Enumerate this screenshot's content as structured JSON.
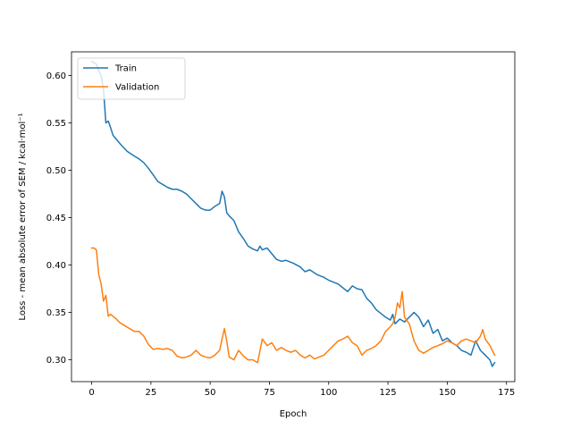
{
  "chart_data": {
    "type": "line",
    "title": "",
    "xlabel": "Epoch",
    "ylabel": "Loss - mean absolute error of SEM / kcal·mol⁻¹",
    "xlim": [
      -8.5,
      178.5
    ],
    "ylim": [
      0.277,
      0.625
    ],
    "xticks": [
      0,
      25,
      50,
      75,
      100,
      125,
      150,
      175
    ],
    "yticks": [
      0.3,
      0.35,
      0.4,
      0.45,
      0.5,
      0.55,
      0.6
    ],
    "xtick_labels": [
      "0",
      "25",
      "50",
      "75",
      "100",
      "125",
      "150",
      "175"
    ],
    "ytick_labels": [
      "0.30",
      "0.35",
      "0.40",
      "0.45",
      "0.50",
      "0.55",
      "0.60"
    ],
    "grid": false,
    "legend_position": "top-left",
    "series": [
      {
        "name": "Train",
        "color": "#1f77b4",
        "x": [
          0,
          2,
          3,
          4,
          5,
          6,
          7,
          8,
          9,
          10,
          12,
          15,
          18,
          20,
          22,
          24,
          26,
          28,
          30,
          32,
          34,
          36,
          38,
          40,
          42,
          44,
          46,
          48,
          50,
          52,
          54,
          55,
          56,
          57,
          58,
          60,
          62,
          64,
          66,
          68,
          70,
          71,
          72,
          74,
          76,
          78,
          80,
          82,
          85,
          88,
          90,
          92,
          95,
          98,
          100,
          102,
          104,
          106,
          108,
          110,
          112,
          114,
          116,
          118,
          120,
          122,
          124,
          126,
          127,
          128,
          130,
          132,
          134,
          136,
          138,
          140,
          142,
          144,
          146,
          148,
          150,
          152,
          154,
          156,
          158,
          160,
          162,
          164,
          166,
          168,
          169,
          170
        ],
        "values": [
          0.615,
          0.612,
          0.605,
          0.6,
          0.585,
          0.55,
          0.552,
          0.545,
          0.537,
          0.534,
          0.528,
          0.52,
          0.515,
          0.512,
          0.508,
          0.502,
          0.495,
          0.488,
          0.485,
          0.482,
          0.48,
          0.48,
          0.478,
          0.475,
          0.47,
          0.465,
          0.46,
          0.458,
          0.458,
          0.462,
          0.465,
          0.478,
          0.472,
          0.455,
          0.452,
          0.447,
          0.435,
          0.428,
          0.42,
          0.417,
          0.415,
          0.42,
          0.416,
          0.418,
          0.412,
          0.406,
          0.404,
          0.405,
          0.402,
          0.398,
          0.393,
          0.395,
          0.39,
          0.387,
          0.384,
          0.382,
          0.38,
          0.376,
          0.372,
          0.378,
          0.375,
          0.374,
          0.365,
          0.36,
          0.353,
          0.349,
          0.345,
          0.342,
          0.348,
          0.338,
          0.343,
          0.34,
          0.345,
          0.35,
          0.345,
          0.335,
          0.342,
          0.328,
          0.332,
          0.32,
          0.323,
          0.318,
          0.315,
          0.31,
          0.308,
          0.305,
          0.32,
          0.31,
          0.305,
          0.3,
          0.293,
          0.297
        ]
      },
      {
        "name": "Validation",
        "color": "#ff7f0e",
        "x": [
          0,
          1,
          2,
          3,
          4,
          5,
          6,
          7,
          8,
          9,
          10,
          12,
          14,
          16,
          18,
          20,
          22,
          24,
          26,
          28,
          30,
          32,
          34,
          36,
          38,
          40,
          42,
          44,
          46,
          48,
          50,
          52,
          54,
          55,
          56,
          57,
          58,
          60,
          62,
          64,
          66,
          68,
          70,
          72,
          74,
          76,
          78,
          80,
          82,
          84,
          86,
          88,
          90,
          92,
          94,
          96,
          98,
          100,
          102,
          104,
          106,
          108,
          110,
          112,
          114,
          116,
          118,
          120,
          122,
          124,
          126,
          127,
          128,
          129,
          130,
          131,
          132,
          134,
          136,
          138,
          140,
          142,
          144,
          146,
          148,
          150,
          152,
          154,
          156,
          158,
          160,
          162,
          164,
          165,
          166,
          168,
          170
        ],
        "values": [
          0.418,
          0.418,
          0.416,
          0.39,
          0.38,
          0.362,
          0.368,
          0.346,
          0.348,
          0.346,
          0.344,
          0.339,
          0.336,
          0.333,
          0.33,
          0.33,
          0.325,
          0.316,
          0.311,
          0.312,
          0.311,
          0.312,
          0.31,
          0.304,
          0.302,
          0.303,
          0.305,
          0.31,
          0.305,
          0.303,
          0.302,
          0.305,
          0.31,
          0.322,
          0.333,
          0.32,
          0.303,
          0.3,
          0.31,
          0.304,
          0.3,
          0.3,
          0.297,
          0.322,
          0.315,
          0.318,
          0.31,
          0.313,
          0.31,
          0.308,
          0.31,
          0.305,
          0.302,
          0.305,
          0.301,
          0.303,
          0.305,
          0.31,
          0.315,
          0.32,
          0.322,
          0.325,
          0.318,
          0.315,
          0.305,
          0.31,
          0.312,
          0.315,
          0.32,
          0.33,
          0.335,
          0.338,
          0.345,
          0.36,
          0.355,
          0.372,
          0.345,
          0.338,
          0.32,
          0.31,
          0.307,
          0.31,
          0.313,
          0.315,
          0.317,
          0.32,
          0.318,
          0.315,
          0.32,
          0.322,
          0.32,
          0.318,
          0.325,
          0.332,
          0.322,
          0.315,
          0.305
        ]
      }
    ]
  }
}
